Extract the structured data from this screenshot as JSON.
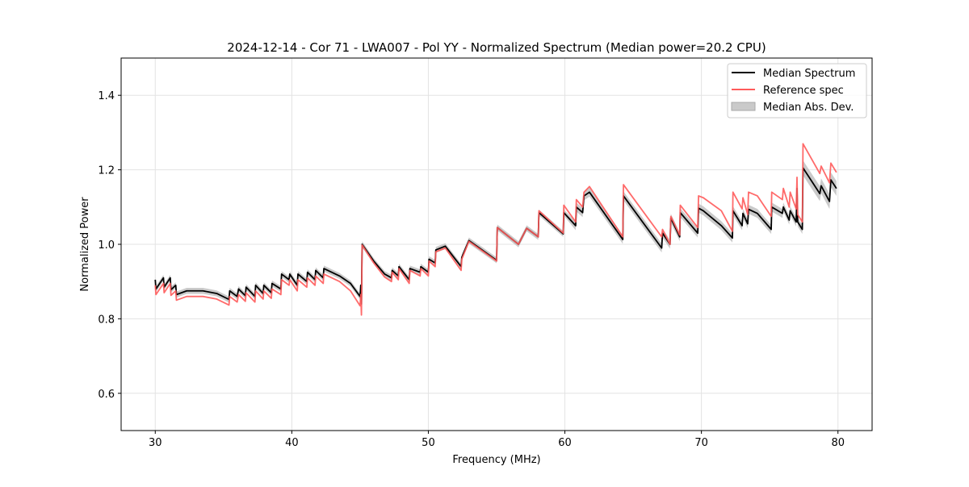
{
  "chart_data": {
    "type": "line",
    "title": "2024-12-14 - Cor 71 - LWA007 - Pol YY - Normalized Spectrum (Median power=20.2 CPU)",
    "xlabel": "Frequency (MHz)",
    "ylabel": "Normalized Power",
    "xlim": [
      27.5,
      82.5
    ],
    "ylim": [
      0.5,
      1.5
    ],
    "xticks": [
      30,
      40,
      50,
      60,
      70,
      80
    ],
    "xtick_labels": [
      "30",
      "40",
      "50",
      "60",
      "70",
      "80"
    ],
    "yticks": [
      0.6,
      0.8,
      1.0,
      1.2,
      1.4
    ],
    "ytick_labels": [
      "0.6",
      "0.8",
      "1.0",
      "1.2",
      "1.4"
    ],
    "grid": true,
    "legend_position": "top-right",
    "colors": {
      "median": "#000000",
      "reference": "#ff5a5a",
      "mad": "#bdbdbd"
    },
    "legend": [
      "Median Spectrum",
      "Reference spec",
      "Median Abs. Dev."
    ],
    "x": [
      30.0,
      30.05,
      30.6,
      30.65,
      31.1,
      31.15,
      31.5,
      31.55,
      32.3,
      33.5,
      34.5,
      35.4,
      35.45,
      36.0,
      36.1,
      36.6,
      36.65,
      37.3,
      37.35,
      37.9,
      37.95,
      38.5,
      38.55,
      39.2,
      39.25,
      39.8,
      39.85,
      40.4,
      40.45,
      41.1,
      41.15,
      41.7,
      41.75,
      42.3,
      42.35,
      43.5,
      44.3,
      45.0,
      45.05,
      45.1,
      45.15,
      46.0,
      46.8,
      47.3,
      47.35,
      47.8,
      47.85,
      48.6,
      48.65,
      49.4,
      49.45,
      50.0,
      50.05,
      50.5,
      50.55,
      51.24,
      52.4,
      52.45,
      52.97,
      55.0,
      55.05,
      56.6,
      57.2,
      58.05,
      58.1,
      59.88,
      59.92,
      60.79,
      60.84,
      61.3,
      61.4,
      61.8,
      64.24,
      64.29,
      67.09,
      67.15,
      67.7,
      67.76,
      68.41,
      68.45,
      69.73,
      69.79,
      70.14,
      71.46,
      72.27,
      72.31,
      72.98,
      73.04,
      73.39,
      73.45,
      74.1,
      75.11,
      75.15,
      75.93,
      76.0,
      76.43,
      76.5,
      76.94,
      77.0,
      77.05,
      77.39,
      77.44,
      78.67,
      78.77,
      79.38,
      79.48,
      79.89
    ],
    "series": [
      {
        "name": "Median Spectrum",
        "values": [
          0.905,
          0.88,
          0.91,
          0.885,
          0.91,
          0.878,
          0.89,
          0.865,
          0.875,
          0.875,
          0.868,
          0.852,
          0.875,
          0.86,
          0.88,
          0.862,
          0.885,
          0.86,
          0.89,
          0.868,
          0.89,
          0.87,
          0.895,
          0.88,
          0.92,
          0.905,
          0.92,
          0.89,
          0.92,
          0.9,
          0.925,
          0.905,
          0.93,
          0.91,
          0.935,
          0.915,
          0.895,
          0.86,
          0.89,
          0.84,
          1.0,
          0.955,
          0.92,
          0.91,
          0.93,
          0.915,
          0.94,
          0.905,
          0.935,
          0.925,
          0.94,
          0.925,
          0.96,
          0.95,
          0.985,
          0.995,
          0.94,
          0.965,
          1.01,
          0.957,
          1.045,
          1.0,
          1.043,
          1.02,
          1.085,
          1.028,
          1.085,
          1.05,
          1.1,
          1.085,
          1.13,
          1.14,
          1.013,
          1.13,
          0.99,
          1.03,
          1.0,
          1.07,
          1.02,
          1.085,
          1.03,
          1.097,
          1.09,
          1.05,
          1.017,
          1.09,
          1.05,
          1.083,
          1.055,
          1.094,
          1.083,
          1.04,
          1.1,
          1.083,
          1.1,
          1.065,
          1.09,
          1.06,
          1.15,
          1.06,
          1.04,
          1.205,
          1.136,
          1.157,
          1.115,
          1.173,
          1.15
        ]
      },
      {
        "name": "Reference spec",
        "values": [
          0.89,
          0.865,
          0.895,
          0.87,
          0.895,
          0.863,
          0.875,
          0.85,
          0.86,
          0.86,
          0.853,
          0.837,
          0.86,
          0.845,
          0.865,
          0.847,
          0.87,
          0.845,
          0.875,
          0.853,
          0.875,
          0.855,
          0.88,
          0.865,
          0.905,
          0.89,
          0.905,
          0.875,
          0.905,
          0.885,
          0.91,
          0.89,
          0.915,
          0.895,
          0.92,
          0.9,
          0.875,
          0.835,
          0.865,
          0.81,
          0.998,
          0.95,
          0.912,
          0.9,
          0.925,
          0.905,
          0.935,
          0.895,
          0.93,
          0.915,
          0.935,
          0.915,
          0.955,
          0.94,
          0.98,
          0.99,
          0.93,
          0.96,
          1.008,
          0.955,
          1.045,
          1.0,
          1.043,
          1.02,
          1.09,
          1.03,
          1.105,
          1.06,
          1.12,
          1.1,
          1.14,
          1.155,
          1.02,
          1.16,
          1.02,
          1.04,
          1.0,
          1.075,
          1.025,
          1.105,
          1.045,
          1.13,
          1.125,
          1.09,
          1.035,
          1.14,
          1.095,
          1.125,
          1.08,
          1.14,
          1.13,
          1.075,
          1.14,
          1.12,
          1.15,
          1.1,
          1.14,
          1.095,
          1.18,
          1.08,
          1.06,
          1.27,
          1.19,
          1.21,
          1.165,
          1.218,
          1.193
        ]
      }
    ],
    "mad": [
      {
        "from": 30,
        "to": 60,
        "value": 0.008
      },
      {
        "from": 60,
        "to": 77.4,
        "value": 0.012
      },
      {
        "from": 77.4,
        "to": 80,
        "value": 0.02
      }
    ]
  }
}
